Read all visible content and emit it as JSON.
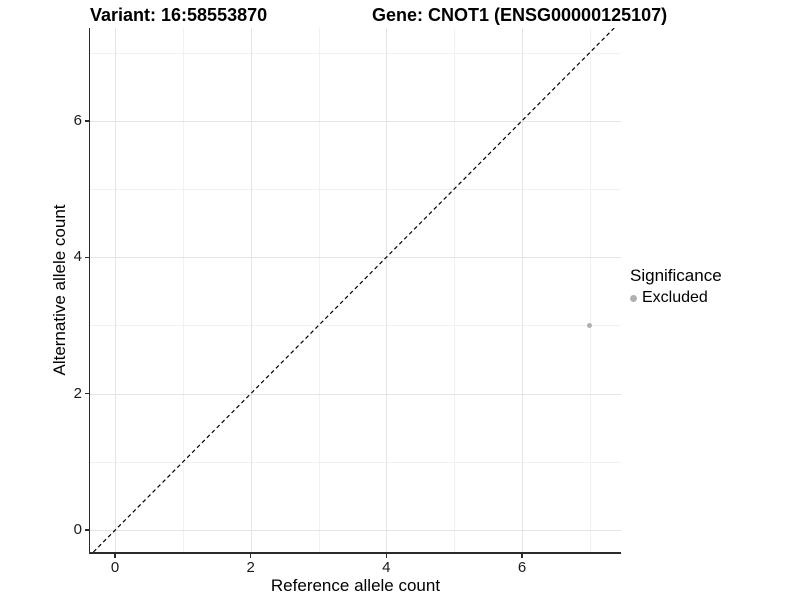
{
  "title": {
    "variant": "Variant: 16:58553870",
    "gene": "Gene: CNOT1 (ENSG00000125107)"
  },
  "chart_data": {
    "type": "scatter",
    "title": "Variant: 16:58553870   Gene: CNOT1 (ENSG00000125107)",
    "xlabel": "Reference allele count",
    "ylabel": "Alternative allele count",
    "xlim": [
      -0.37,
      7.46
    ],
    "ylim": [
      -0.32,
      7.36
    ],
    "x_major_ticks": [
      0,
      2,
      4,
      6
    ],
    "y_major_ticks": [
      0,
      2,
      4,
      6
    ],
    "x_minor_gridlines": [
      1,
      3,
      5,
      7
    ],
    "y_minor_gridlines": [
      1,
      3,
      5,
      7
    ],
    "grid": true,
    "series": [
      {
        "name": "Excluded",
        "color": "#b0b0b0",
        "points": [
          {
            "x": 7,
            "y": 3
          }
        ]
      }
    ],
    "reference_line": {
      "equation": "y = x",
      "style": "dashed",
      "color": "#000000",
      "from": [
        -0.32,
        -0.32
      ],
      "to": [
        7.36,
        7.36
      ]
    },
    "legend": {
      "title": "Significance",
      "position": "right",
      "items": [
        {
          "label": "Excluded",
          "color": "#b0b0b0"
        }
      ]
    }
  },
  "colors": {
    "background": "#ffffff",
    "grid_major": "#e4e4e4",
    "grid_minor": "#f1f1f1",
    "axis_line": "#2b2b2b",
    "tick_label": "#1a1a1a",
    "point": "#b0b0b0"
  }
}
